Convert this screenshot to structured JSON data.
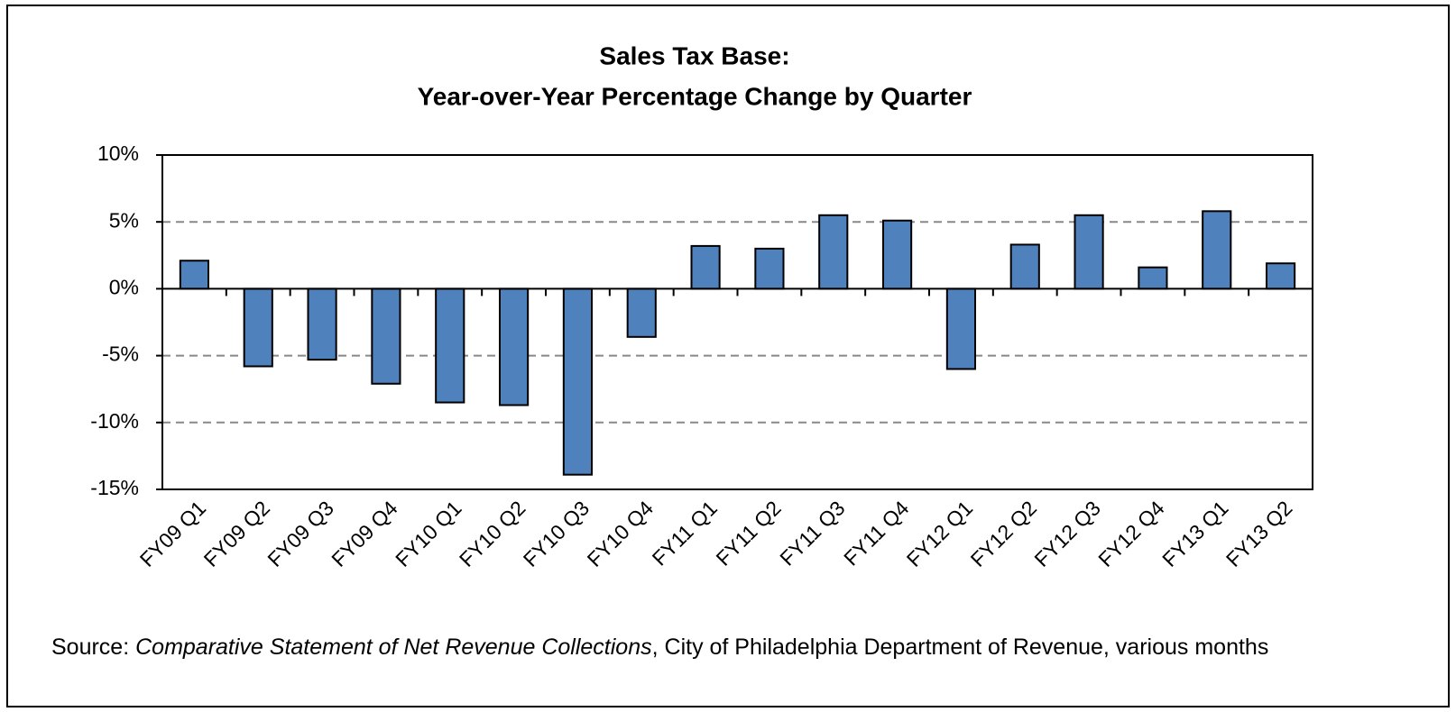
{
  "chart_data": {
    "type": "bar",
    "title": [
      "Sales Tax Base:",
      "Year-over-Year Percentage Change by Quarter"
    ],
    "categories": [
      "FY09 Q1",
      "FY09 Q2",
      "FY09 Q3",
      "FY09 Q4",
      "FY10 Q1",
      "FY10 Q2",
      "FY10 Q3",
      "FY10 Q4",
      "FY11 Q1",
      "FY11 Q2",
      "FY11 Q3",
      "FY11 Q4",
      "FY12 Q1",
      "FY12 Q2",
      "FY12 Q3",
      "FY12 Q4",
      "FY13 Q1",
      "FY13 Q2"
    ],
    "values": [
      2.1,
      -5.8,
      -5.3,
      -7.1,
      -8.5,
      -8.7,
      -13.9,
      -3.6,
      3.2,
      3.0,
      5.5,
      5.1,
      -6.0,
      3.3,
      5.5,
      1.6,
      5.8,
      1.9
    ],
    "color": "#4f81bd",
    "ylim": [
      -15,
      10
    ],
    "yticks": [
      {
        "value": -15,
        "label": "-15%"
      },
      {
        "value": -10,
        "label": "-10%"
      },
      {
        "value": -5,
        "label": "-5%"
      },
      {
        "value": 0,
        "label": "0%"
      },
      {
        "value": 5,
        "label": "5%"
      },
      {
        "value": 10,
        "label": "10%"
      }
    ],
    "grid": true,
    "source": {
      "prefix": "Source: ",
      "title": "Comparative Statement of Net Revenue Collections",
      "suffix": ", City of Philadelphia Department of Revenue, various months"
    }
  }
}
